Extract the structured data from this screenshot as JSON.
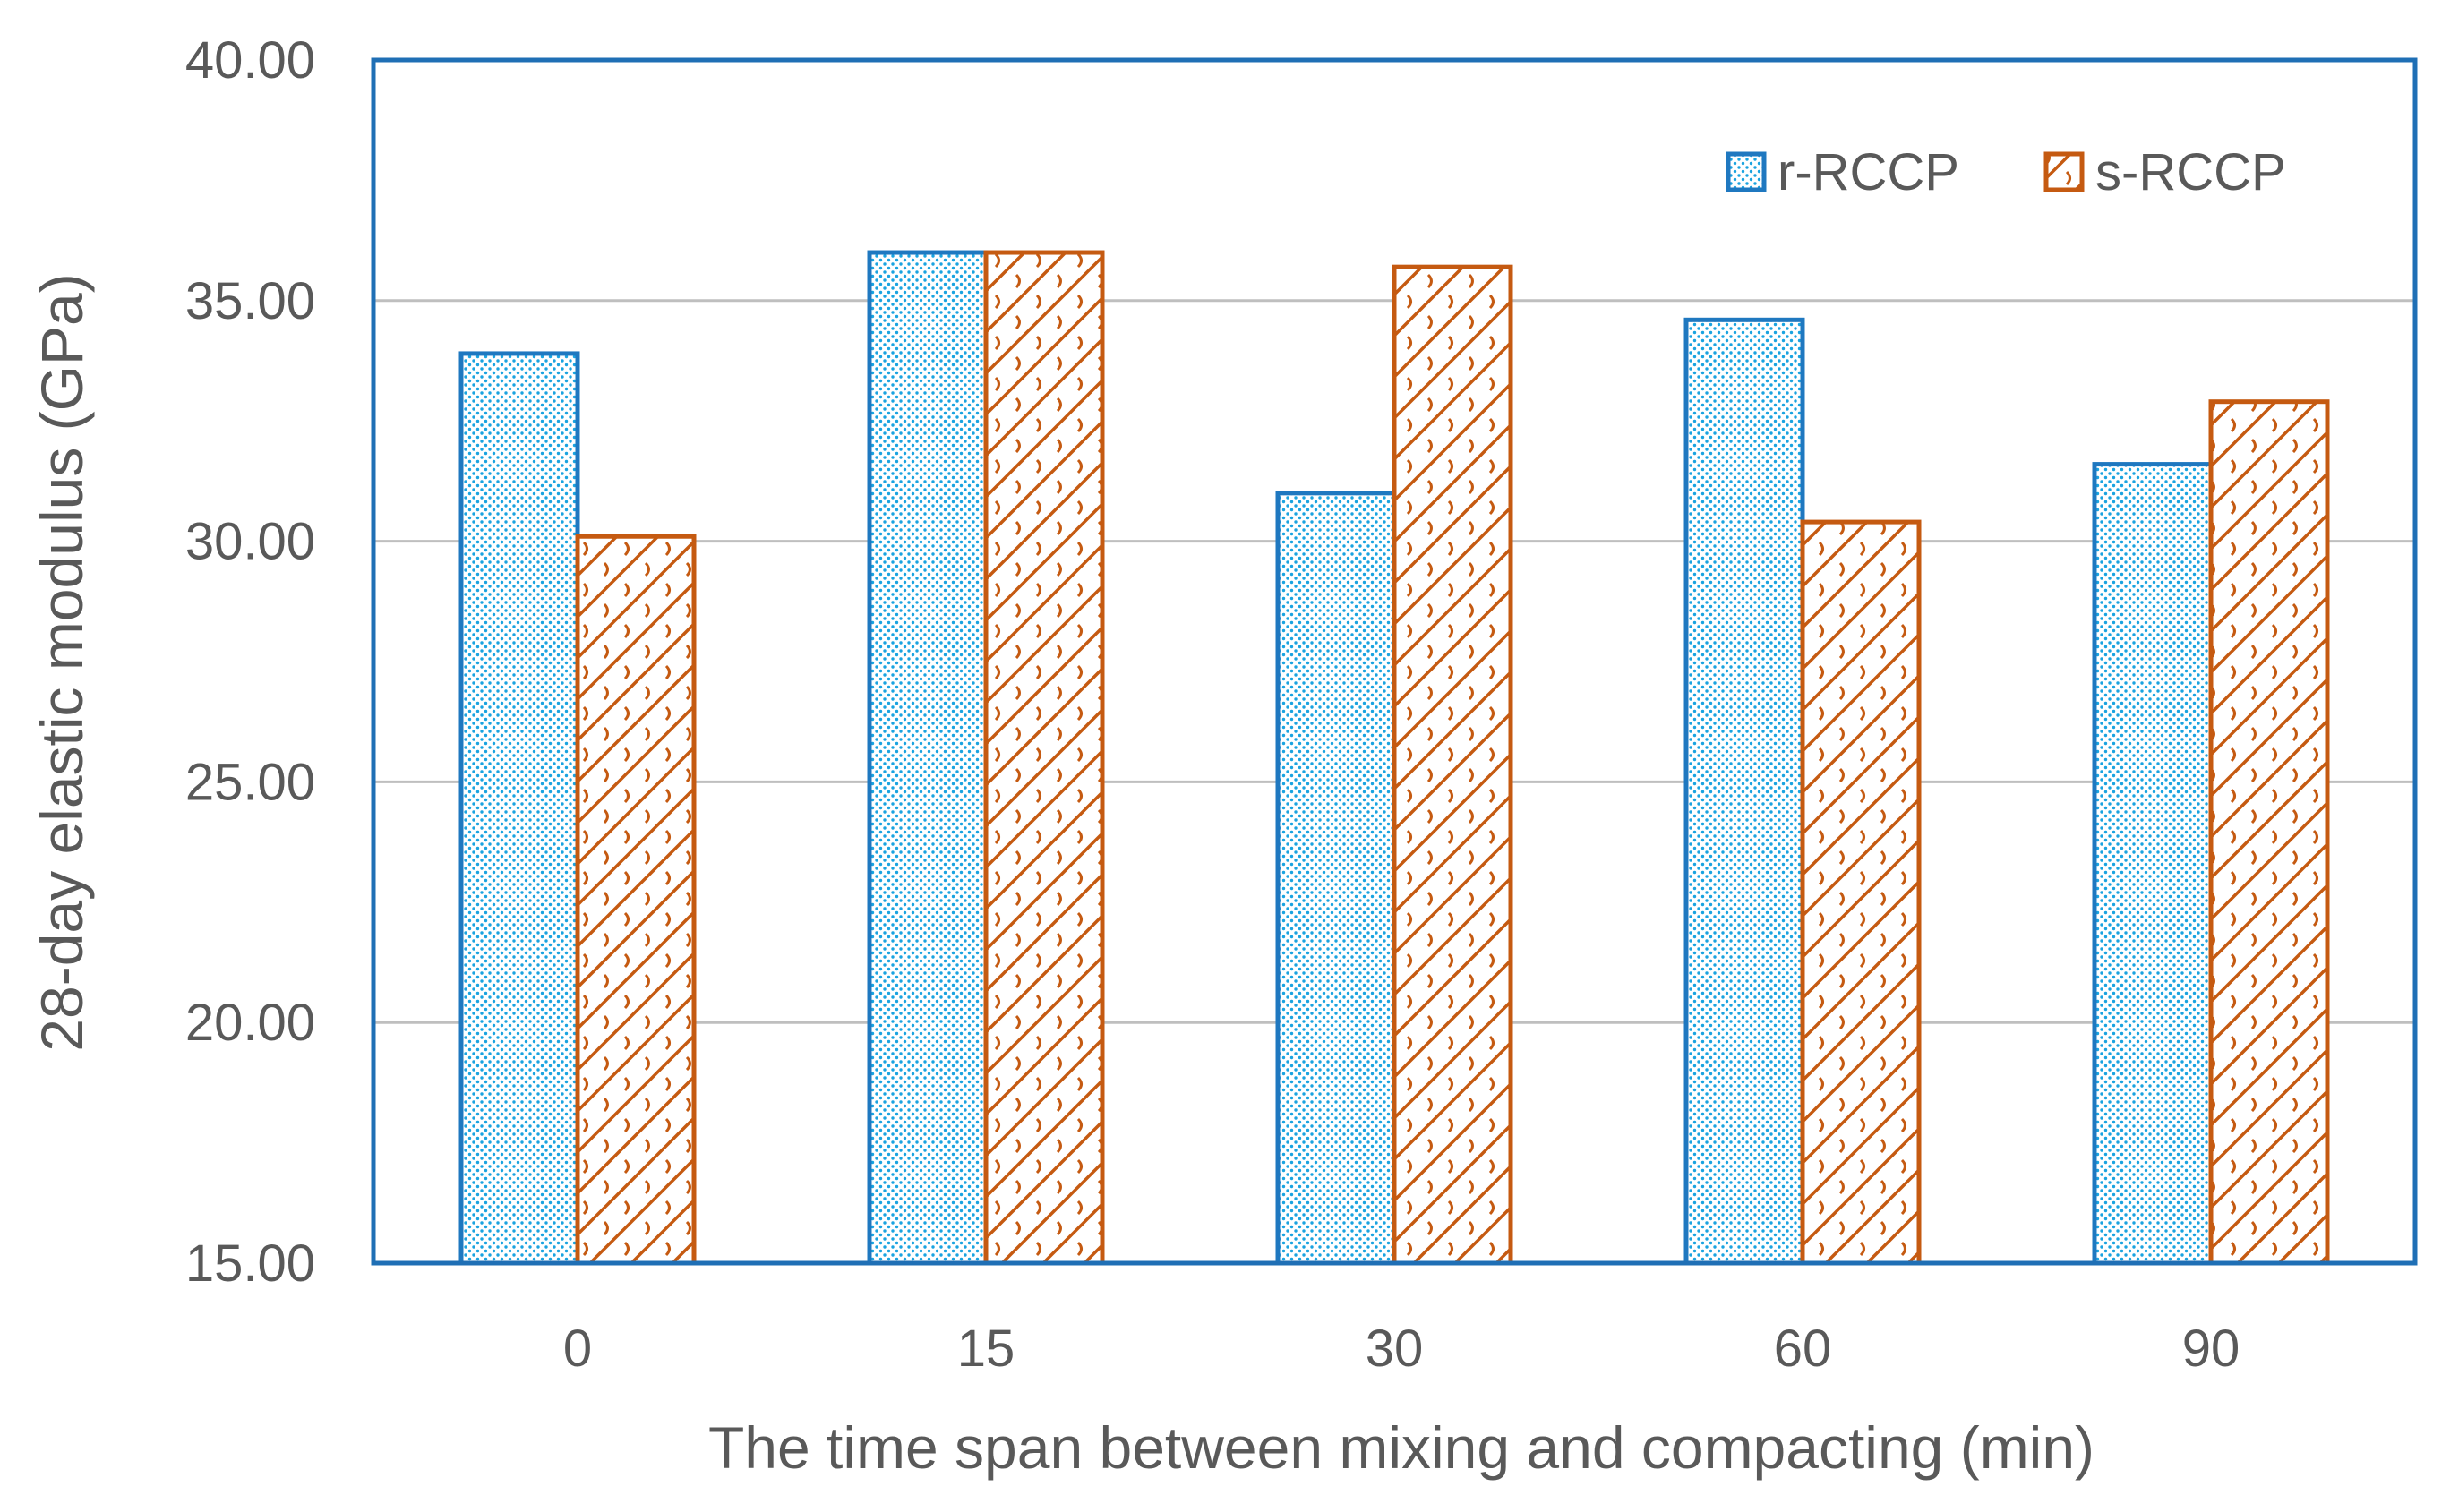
{
  "colors": {
    "r_RCCP_edge": "#1f78c0",
    "r_RCCP_dot": "#1aa3e0",
    "s_RCCP_edge": "#c55a11",
    "grid": "#bfbfbf",
    "frame": "#1f6fb5",
    "text": "#595959"
  },
  "chart_data": {
    "type": "bar",
    "title": "",
    "xlabel": "The time span between mixing and compacting (min)",
    "ylabel": "28-day elastic modulus (GPa)",
    "categories": [
      "0",
      "15",
      "30",
      "60",
      "90"
    ],
    "ylim": [
      15,
      40
    ],
    "yticks": [
      15,
      20,
      25,
      30,
      35,
      40
    ],
    "ytick_labels": [
      "15.00",
      "20.00",
      "25.00",
      "30.00",
      "35.00",
      "40.00"
    ],
    "grid": true,
    "legend_position": "top-right",
    "series": [
      {
        "name": "r-RCCP",
        "values": [
          33.9,
          36.0,
          31.0,
          34.6,
          31.6
        ]
      },
      {
        "name": "s-RCCP",
        "values": [
          30.1,
          36.0,
          35.7,
          30.4,
          32.9
        ]
      }
    ]
  }
}
